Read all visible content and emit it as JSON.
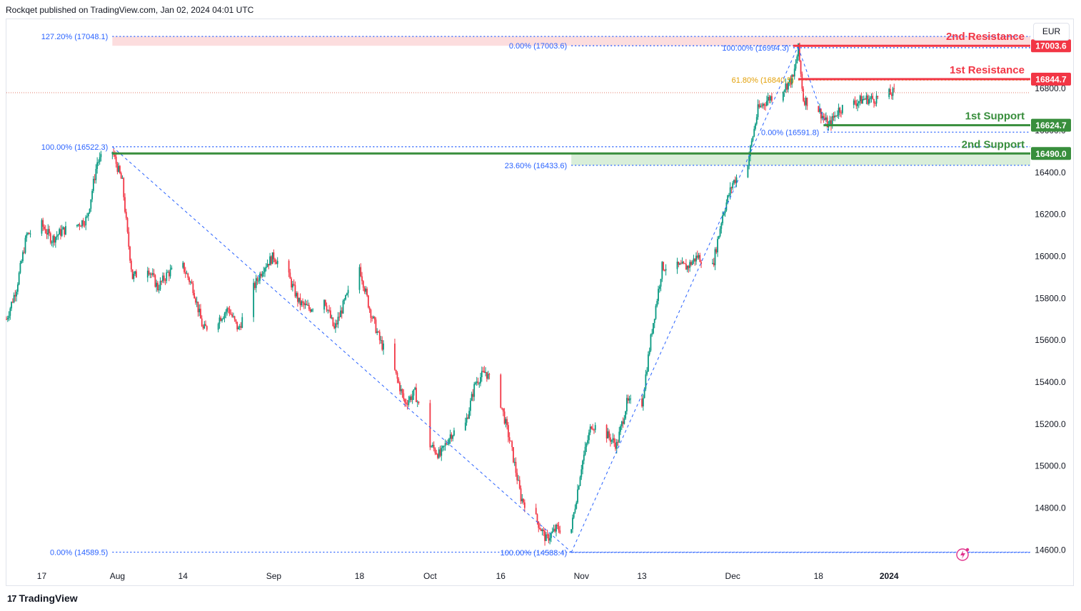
{
  "header": {
    "text": "Rockqet published on TradingView.com, Jan 02, 2024 04:01 UTC"
  },
  "currency": "EUR",
  "footer": {
    "brand": "TradingView",
    "logo_glyph": "17"
  },
  "colors": {
    "up": "#089981",
    "down": "#f23645",
    "fib": "#2962ff",
    "fib_gold": "#e3a008",
    "resistance": "#f23645",
    "support": "#388e3c",
    "resistance_zone": "#fcd9da",
    "support_zone": "#d5ecd5",
    "last_price": "#e07b6a",
    "axis_text": "#131722"
  },
  "chart_data": {
    "type": "candlestick",
    "title": "",
    "y_ticks": [
      14600,
      14800,
      15000,
      15200,
      15400,
      15600,
      15800,
      16000,
      16200,
      16400,
      16600,
      16800
    ],
    "y_tick_labels": [
      "14600.0",
      "14800.0",
      "15000.0",
      "15200.0",
      "15400.0",
      "15600.0",
      "15800.0",
      "16000.0",
      "16200.0",
      "16400.0",
      "16600.0",
      "16800.0"
    ],
    "ylim": [
      14530,
      17130
    ],
    "xlim": [
      "2023-07-10",
      "2024-01-29"
    ],
    "x_ticks": [
      {
        "date": "2023-07-17",
        "label": "17",
        "bold": false
      },
      {
        "date": "2023-08-01",
        "label": "Aug",
        "bold": false
      },
      {
        "date": "2023-08-14",
        "label": "14",
        "bold": false
      },
      {
        "date": "2023-09-01",
        "label": "Sep",
        "bold": false
      },
      {
        "date": "2023-09-18",
        "label": "18",
        "bold": false
      },
      {
        "date": "2023-10-02",
        "label": "Oct",
        "bold": false
      },
      {
        "date": "2023-10-16",
        "label": "16",
        "bold": false
      },
      {
        "date": "2023-11-01",
        "label": "Nov",
        "bold": false
      },
      {
        "date": "2023-11-13",
        "label": "13",
        "bold": false
      },
      {
        "date": "2023-12-01",
        "label": "Dec",
        "bold": false
      },
      {
        "date": "2023-12-18",
        "label": "18",
        "bold": false
      },
      {
        "date": "2024-01-01",
        "label": "2024",
        "bold": true
      }
    ],
    "price_path": [
      [
        "2023-07-10",
        15700
      ],
      [
        "2023-07-12",
        15850
      ],
      [
        "2023-07-14",
        16100
      ],
      [
        "2023-07-17",
        16150
      ],
      [
        "2023-07-19",
        16080
      ],
      [
        "2023-07-21",
        16120
      ],
      [
        "2023-07-24",
        16150
      ],
      [
        "2023-07-26",
        16180
      ],
      [
        "2023-07-28",
        16450
      ],
      [
        "2023-07-31",
        16500
      ],
      [
        "2023-08-02",
        16350
      ],
      [
        "2023-08-03",
        16100
      ],
      [
        "2023-08-04",
        15900
      ],
      [
        "2023-08-07",
        15950
      ],
      [
        "2023-08-09",
        15850
      ],
      [
        "2023-08-11",
        15920
      ],
      [
        "2023-08-14",
        15950
      ],
      [
        "2023-08-16",
        15850
      ],
      [
        "2023-08-18",
        15650
      ],
      [
        "2023-08-21",
        15700
      ],
      [
        "2023-08-23",
        15750
      ],
      [
        "2023-08-25",
        15650
      ],
      [
        "2023-08-28",
        15850
      ],
      [
        "2023-08-30",
        15950
      ],
      [
        "2023-09-01",
        16000
      ],
      [
        "2023-09-04",
        15900
      ],
      [
        "2023-09-06",
        15780
      ],
      [
        "2023-09-08",
        15750
      ],
      [
        "2023-09-11",
        15800
      ],
      [
        "2023-09-13",
        15650
      ],
      [
        "2023-09-15",
        15780
      ],
      [
        "2023-09-18",
        15950
      ],
      [
        "2023-09-20",
        15750
      ],
      [
        "2023-09-22",
        15600
      ],
      [
        "2023-09-25",
        15450
      ],
      [
        "2023-09-27",
        15300
      ],
      [
        "2023-09-29",
        15350
      ],
      [
        "2023-10-02",
        15100
      ],
      [
        "2023-10-04",
        15050
      ],
      [
        "2023-10-06",
        15150
      ],
      [
        "2023-10-09",
        15200
      ],
      [
        "2023-10-11",
        15400
      ],
      [
        "2023-10-13",
        15450
      ],
      [
        "2023-10-16",
        15300
      ],
      [
        "2023-10-18",
        15100
      ],
      [
        "2023-10-20",
        14850
      ],
      [
        "2023-10-23",
        14750
      ],
      [
        "2023-10-25",
        14650
      ],
      [
        "2023-10-27",
        14700
      ],
      [
        "2023-10-30",
        14700
      ],
      [
        "2023-11-01",
        15000
      ],
      [
        "2023-11-03",
        15200
      ],
      [
        "2023-11-06",
        15150
      ],
      [
        "2023-11-08",
        15100
      ],
      [
        "2023-11-10",
        15300
      ],
      [
        "2023-11-13",
        15300
      ],
      [
        "2023-11-15",
        15650
      ],
      [
        "2023-11-17",
        15950
      ],
      [
        "2023-11-20",
        15950
      ],
      [
        "2023-11-22",
        15950
      ],
      [
        "2023-11-24",
        16000
      ],
      [
        "2023-11-27",
        15950
      ],
      [
        "2023-11-29",
        16200
      ],
      [
        "2023-12-01",
        16350
      ],
      [
        "2023-12-04",
        16450
      ],
      [
        "2023-12-06",
        16700
      ],
      [
        "2023-12-08",
        16750
      ],
      [
        "2023-12-11",
        16800
      ],
      [
        "2023-12-13",
        16850
      ],
      [
        "2023-12-14",
        16990
      ],
      [
        "2023-12-15",
        16750
      ],
      [
        "2023-12-18",
        16700
      ],
      [
        "2023-12-20",
        16620
      ],
      [
        "2023-12-22",
        16700
      ],
      [
        "2023-12-27",
        16750
      ],
      [
        "2023-12-29",
        16750
      ],
      [
        "2024-01-02",
        16780
      ]
    ],
    "levels": [
      {
        "name": "2nd Resistance",
        "label": "2nd Resistance",
        "value": 17003.6,
        "value_label": "17003.6",
        "kind": "resistance",
        "start": "2023-12-13"
      },
      {
        "name": "1st Resistance",
        "label": "1st Resistance",
        "value": 16844.7,
        "value_label": "16844.7",
        "kind": "resistance",
        "start": "2023-12-14"
      },
      {
        "name": "1st Support",
        "label": "1st Support",
        "value": 16624.7,
        "value_label": "16624.7",
        "kind": "support",
        "start": "2023-12-19"
      },
      {
        "name": "2nd Support",
        "label": "2nd Support",
        "value": 16490.0,
        "value_label": "16490.0",
        "kind": "support",
        "start": "2023-07-31"
      }
    ],
    "zones": [
      {
        "kind": "resistance",
        "from": 17003.6,
        "to": 17048.1,
        "start": "2023-07-31"
      },
      {
        "kind": "support",
        "from": 16433.6,
        "to": 16490.0,
        "start": "2023-10-30"
      }
    ],
    "fib_lines": [
      {
        "label": "127.20% (17048.1)",
        "value": 17048.1,
        "start": "2023-07-31",
        "color": "fib",
        "label_side": "left"
      },
      {
        "label": "0.00% (17003.6)",
        "value": 17003.6,
        "start": "2023-10-30",
        "color": "fib",
        "label_side": "left"
      },
      {
        "label": "100.00% (16994.3)",
        "value": 16994.3,
        "start": "2023-12-13",
        "color": "fib",
        "label_side": "left"
      },
      {
        "label": "61.80% (16840.5)",
        "value": 16840.5,
        "start": "2023-12-14",
        "color": "fib_gold",
        "label_side": "left"
      },
      {
        "label": "0.00% (16591.8)",
        "value": 16591.8,
        "start": "2023-12-19",
        "color": "fib",
        "label_side": "left"
      },
      {
        "label": "100.00% (16522.3)",
        "value": 16522.3,
        "start": "2023-07-31",
        "color": "fib",
        "label_side": "left"
      },
      {
        "label": "23.60% (16433.6)",
        "value": 16433.6,
        "start": "2023-10-30",
        "color": "fib",
        "label_side": "left"
      },
      {
        "label": "0.00% (14589.5)",
        "value": 14589.5,
        "start": "2023-07-31",
        "color": "fib",
        "label_side": "left"
      },
      {
        "label": "100.00% (14588.4)",
        "value": 14588.4,
        "start": "2023-10-30",
        "color": "fib",
        "label_side": "left"
      }
    ],
    "trend_lines": [
      [
        [
          "2023-07-31",
          16522.3
        ],
        [
          "2023-10-30",
          14589.5
        ]
      ],
      [
        [
          "2023-10-30",
          14588.4
        ],
        [
          "2023-12-14",
          17003.6
        ]
      ],
      [
        [
          "2023-12-14",
          16994.3
        ],
        [
          "2023-12-20",
          16591.8
        ]
      ]
    ],
    "last_price": 16780
  }
}
